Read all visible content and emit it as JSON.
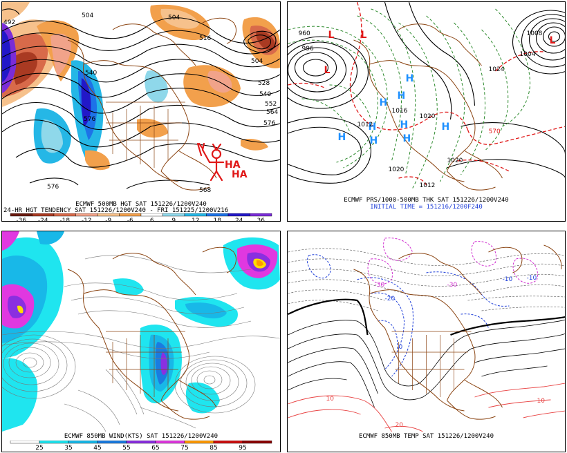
{
  "panels": {
    "p1": {
      "caption_line1": "ECMWF 500MB HGT SAT 151226/1200V240",
      "caption_line2": "24-HR HGT TENDENCY SAT 151226/1200V240 - FRI 151225/1200V216",
      "scale_labels": [
        "-36",
        "-24",
        "-18",
        "-12",
        "-9",
        "-6",
        "6",
        "9",
        "12",
        "18",
        "24",
        "36"
      ],
      "scale_colors": [
        "#6a1b10",
        "#a93a22",
        "#d86a4a",
        "#f1a38a",
        "#f6c18c",
        "#f2a04c",
        "#ffffff",
        "#8fd8ea",
        "#25b7e6",
        "#1d73e8",
        "#2218c8",
        "#7a2cd8"
      ],
      "contour_labels": [
        "504",
        "504",
        "516",
        "528",
        "540",
        "552",
        "564",
        "576",
        "576",
        "576",
        "540",
        "504",
        "492",
        "568"
      ],
      "doodle_text_1": "HA",
      "doodle_text_2": "HA"
    },
    "p2": {
      "caption_line1": "ECMWF PRS/1000-500MB THK SAT 151226/1200V240",
      "caption_line2": "INITIAL TIME = 151216/1200F240",
      "pressure_labels": [
        "960",
        "996",
        "1004",
        "1008",
        "1016",
        "1020",
        "1024",
        "1012",
        "1012",
        "1020",
        "1020"
      ],
      "thickness_label": "570",
      "highs": [
        "H",
        "H",
        "H",
        "H",
        "H",
        "H",
        "H",
        "H",
        "H"
      ],
      "lows": [
        "L",
        "L",
        "L",
        "L"
      ]
    },
    "p3": {
      "caption": "ECMWF 850MB WIND(KTS) SAT 151226/1200V240",
      "scale_labels": [
        "25",
        "35",
        "45",
        "55",
        "65",
        "75",
        "85",
        "95"
      ],
      "scale_colors": [
        "#ffffff",
        "#1fe5ef",
        "#18b8e8",
        "#1a7be0",
        "#8a2fe0",
        "#e038e0",
        "#ff9a00",
        "#cc1010",
        "#8b0000"
      ]
    },
    "p4": {
      "caption": "ECMWF 850MB TEMP SAT 151226/1200V240",
      "temp_labels": [
        "-30",
        "-30",
        "-10",
        "-20",
        "0",
        "10",
        "20",
        "-10",
        "10"
      ]
    }
  }
}
